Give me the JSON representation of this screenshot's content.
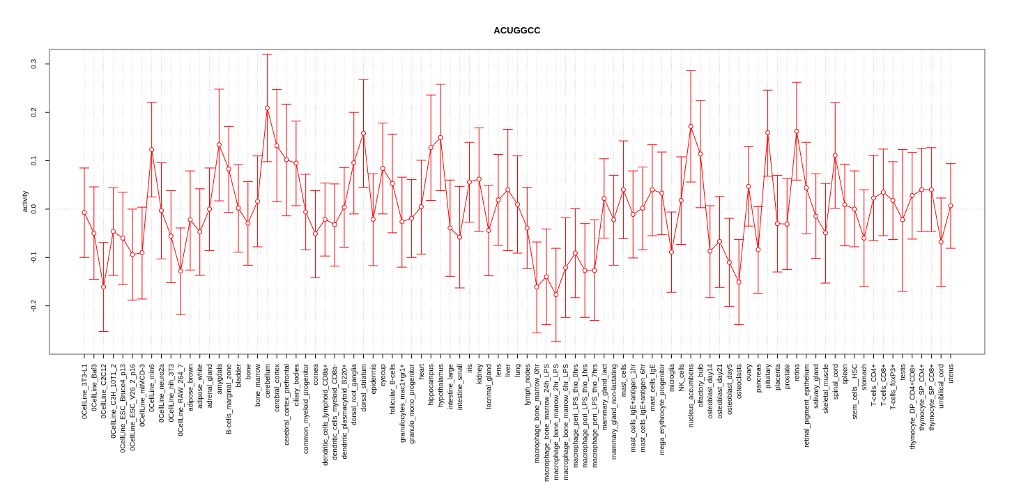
{
  "chart_data": {
    "type": "line",
    "title": "ACUGGCC",
    "xlabel": "",
    "ylabel": "activity",
    "ylim": [
      -0.3,
      0.33
    ],
    "yticks": [
      -0.2,
      -0.1,
      0.0,
      0.1,
      0.2,
      0.3
    ],
    "ytick_labels": [
      "-0.2",
      "-0.1",
      "0.0",
      "0.1",
      "0.2",
      "0.3"
    ],
    "grid": true,
    "color": "#ff0000",
    "categories": [
      "0CellLine_3T3-L1",
      "0CellLine_Baf3",
      "0CellLine_C2C12",
      "0CellLine_C3H_10T1_2",
      "0CellLine_ESC_Bruce4_p13",
      "0CellLine_ESC_V26_2_p16",
      "0CellLine_mIMCD-3",
      "0CellLine_min6",
      "0CellLine_neuro2a",
      "0CellLine_nih_3T3",
      "0CellLine_RAW_264_7",
      "adipose_brown",
      "adipose_white",
      "adrenal_gland",
      "amygdala",
      "B-cells_marginal_zone",
      "bladder",
      "bone",
      "bone_marrow",
      "cerebellum",
      "cerebral_cortex",
      "cerebral_cortex_prefrontal",
      "ciliary_bodies",
      "common_myeloid_progenitor",
      "cornea",
      "dendritic_cells_lymphoid_CD8a+",
      "dendritic_cells_myeloid_CD8a-",
      "dendritic_plasmacytoid_B220+",
      "dorsal_root_ganglia",
      "dorsal_striatum",
      "epidermis",
      "eyecup",
      "follicular_B-cells",
      "granulocytes_mac1+gr1+",
      "granulo_mono_progenitor",
      "heart",
      "hippocampus",
      "hypothalamus",
      "intestine_large",
      "intestine_small",
      "iris",
      "kidney",
      "lacrimal_gland",
      "lens",
      "liver",
      "lung",
      "lymph_nodes",
      "macrophage_bone_marrow_0hr",
      "macrophage_bone_marrow_24h_LPS",
      "macrophage_bone_marrow_2hr_LPS",
      "macrophage_bone_marrow_6hr_LPS",
      "macrophage_peri_LPS_thio_0hrs",
      "macrophage_peri_LPS_thio_1hrs",
      "macrophage_peri_LPS_thio_7hrs",
      "mammary_gland_lact",
      "mammary_gland_non-lactating",
      "mast_cells",
      "mast_cells_IgE+antigen_1hr",
      "mast_cells_IgE+antigen_6hr",
      "mast_cells_IgE",
      "mega_erythrocyte_progenitor",
      "microglia",
      "NK_cells",
      "nucleus_accumbens",
      "olfactory_bulb",
      "osteoblast_day14",
      "osteoblast_day21",
      "osteoblast_day5",
      "osteoclasts",
      "ovary",
      "pancreas",
      "pituitary",
      "placenta",
      "prostate",
      "retina",
      "retinal_pigment_epithelium",
      "salivary_gland",
      "skeletal_muscle",
      "spinal_cord",
      "spleen",
      "stem_cells__HSC",
      "stomach",
      "T-cells_CD4+",
      "T-cells_CD8+",
      "T-cells_foxP3+",
      "testis",
      "thymocyte_DP_CD4+CD8+",
      "thymocyte_SP_CD4+",
      "thymocyte_SP_CD8+",
      "umbilical_cord",
      "uterus"
    ],
    "values": [
      -0.007,
      -0.05,
      -0.161,
      -0.046,
      -0.06,
      -0.094,
      -0.09,
      0.123,
      -0.003,
      -0.056,
      -0.128,
      -0.022,
      -0.047,
      0.0,
      0.133,
      0.083,
      0.002,
      -0.029,
      0.016,
      0.209,
      0.131,
      0.102,
      0.095,
      -0.006,
      -0.051,
      -0.021,
      -0.032,
      0.004,
      0.096,
      0.157,
      -0.021,
      0.084,
      0.053,
      -0.026,
      -0.019,
      0.005,
      0.127,
      0.148,
      -0.039,
      -0.058,
      0.056,
      0.062,
      -0.044,
      0.019,
      0.04,
      0.01,
      -0.039,
      -0.161,
      -0.14,
      -0.177,
      -0.121,
      -0.091,
      -0.127,
      -0.127,
      0.022,
      -0.022,
      0.04,
      -0.011,
      0.002,
      0.04,
      0.033,
      -0.089,
      0.018,
      0.171,
      0.114,
      -0.087,
      -0.067,
      -0.11,
      -0.151,
      0.047,
      -0.084,
      0.158,
      -0.03,
      -0.031,
      0.161,
      0.044,
      -0.015,
      -0.049,
      0.111,
      0.009,
      0.0,
      -0.06,
      0.023,
      0.035,
      0.018,
      -0.022,
      0.028,
      0.04,
      0.04,
      -0.068,
      0.007
    ],
    "lower": [
      -0.1,
      -0.145,
      -0.253,
      -0.137,
      -0.156,
      -0.188,
      -0.186,
      0.025,
      -0.103,
      -0.152,
      -0.218,
      -0.126,
      -0.137,
      -0.086,
      0.017,
      -0.007,
      -0.089,
      -0.116,
      -0.078,
      0.098,
      0.015,
      -0.014,
      0.007,
      -0.084,
      -0.142,
      -0.097,
      -0.118,
      -0.079,
      -0.01,
      0.045,
      -0.117,
      -0.01,
      -0.049,
      -0.12,
      -0.1,
      -0.093,
      0.018,
      0.038,
      -0.139,
      -0.163,
      -0.027,
      -0.046,
      -0.138,
      -0.075,
      -0.086,
      -0.091,
      -0.123,
      -0.256,
      -0.239,
      -0.274,
      -0.224,
      -0.183,
      -0.224,
      -0.23,
      -0.06,
      -0.116,
      -0.061,
      -0.101,
      -0.084,
      -0.055,
      -0.053,
      -0.172,
      -0.073,
      0.056,
      0.003,
      -0.183,
      -0.162,
      -0.201,
      -0.239,
      -0.035,
      -0.174,
      0.068,
      -0.13,
      -0.125,
      0.06,
      -0.051,
      -0.102,
      -0.153,
      0.002,
      -0.076,
      -0.078,
      -0.16,
      -0.065,
      -0.055,
      -0.063,
      -0.17,
      -0.062,
      -0.046,
      -0.046,
      -0.16,
      -0.081
    ],
    "upper": [
      0.085,
      0.046,
      -0.069,
      0.044,
      0.035,
      0.0,
      0.004,
      0.221,
      0.096,
      0.038,
      -0.039,
      0.079,
      0.042,
      0.085,
      0.248,
      0.171,
      0.092,
      0.057,
      0.11,
      0.32,
      0.247,
      0.217,
      0.182,
      0.072,
      0.038,
      0.054,
      0.052,
      0.086,
      0.2,
      0.268,
      0.073,
      0.178,
      0.155,
      0.066,
      0.061,
      0.101,
      0.236,
      0.258,
      0.06,
      0.047,
      0.138,
      0.168,
      0.049,
      0.113,
      0.165,
      0.11,
      0.045,
      -0.068,
      -0.041,
      -0.081,
      -0.018,
      0.001,
      -0.03,
      -0.022,
      0.104,
      0.07,
      0.141,
      0.079,
      0.087,
      0.133,
      0.118,
      -0.006,
      0.108,
      0.286,
      0.224,
      0.007,
      0.026,
      -0.019,
      -0.063,
      0.129,
      0.005,
      0.246,
      0.07,
      0.063,
      0.262,
      0.138,
      0.073,
      0.053,
      0.22,
      0.093,
      0.079,
      0.04,
      0.111,
      0.124,
      0.098,
      0.123,
      0.117,
      0.126,
      0.127,
      0.023,
      0.094
    ]
  }
}
